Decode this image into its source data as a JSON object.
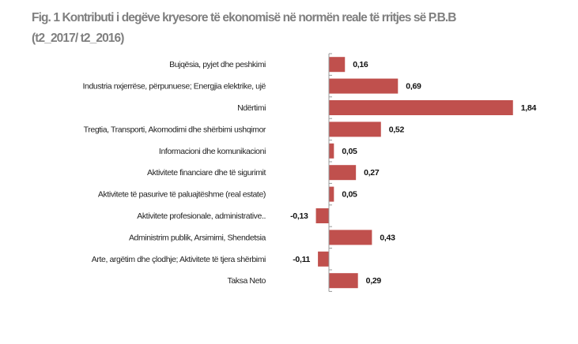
{
  "chart_data": {
    "type": "bar",
    "orientation": "horizontal",
    "title": "Fig. 1 Kontributi i degëve kryesore të ekonomisë në normën reale të rritjes së P.B.B",
    "subtitle": "(t2_2017/ t2_2016)",
    "xlabel": "",
    "ylabel": "",
    "grid": false,
    "legend": "none",
    "bar_color": "#c0504d",
    "categories": [
      "Bujqësia, pyjet dhe peshkimi",
      "Industria nxjerrëse, përpunuese; Energjia elektrike, ujë",
      "Ndërtimi",
      "Tregtia, Transporti, Akomodimi dhe shërbimi ushqimor",
      "Informacioni dhe komunikacioni",
      "Aktivitete financiare dhe të sigurimit",
      "Aktivitete të pasurive të paluajtëshme (real estate)",
      "Aktivitete profesionale, administrative..",
      "Administrim publik, Arsimimi, Shendetsia",
      "Arte, argëtim dhe çlodhje; Aktivitete të tjera shërbimi",
      "Taksa Neto"
    ],
    "values": [
      0.16,
      0.69,
      1.84,
      0.52,
      0.05,
      0.27,
      0.05,
      -0.13,
      0.43,
      -0.11,
      0.29
    ],
    "labels": [
      "0,16",
      "0,69",
      "1,84",
      "0,52",
      "0,05",
      "0,27",
      "0,05",
      "-0,13",
      "0,43",
      "-0,11",
      "0,29"
    ]
  }
}
